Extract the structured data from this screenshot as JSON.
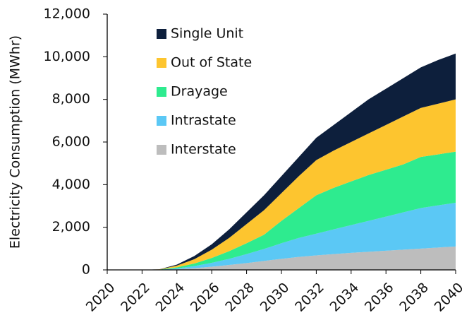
{
  "chart_data": {
    "type": "stacked_area",
    "y_label": "Electricity Consumption  (MWhr)",
    "x": [
      2020,
      2021,
      2022,
      2023,
      2024,
      2025,
      2026,
      2027,
      2028,
      2029,
      2030,
      2031,
      2032,
      2033,
      2034,
      2035,
      2036,
      2037,
      2038,
      2039,
      2040
    ],
    "xlim": [
      2020,
      2040
    ],
    "xticks": [
      2020,
      2022,
      2024,
      2026,
      2028,
      2030,
      2032,
      2034,
      2036,
      2038,
      2040
    ],
    "ylim": [
      0,
      12000
    ],
    "yticks": [
      0,
      {
        "value": 2000,
        "label": "2,000"
      },
      {
        "value": 4000,
        "label": "4,000"
      },
      {
        "value": 6000,
        "label": "6,000"
      },
      {
        "value": 8000,
        "label": "8,000"
      },
      {
        "value": 10000,
        "label": "10,000"
      },
      {
        "value": 12000,
        "label": "12,000"
      }
    ],
    "grid": false,
    "legend": "upper left",
    "series": [
      {
        "name": "Interstate",
        "color": "#bdbdbd",
        "values": [
          0,
          0,
          0,
          5,
          30,
          80,
          150,
          230,
          320,
          420,
          520,
          610,
          680,
          740,
          800,
          850,
          900,
          950,
          1000,
          1050,
          1100
        ]
      },
      {
        "name": "Intrastate",
        "color": "#5bc8f5",
        "values": [
          0,
          0,
          0,
          5,
          40,
          100,
          180,
          290,
          420,
          560,
          730,
          890,
          1020,
          1160,
          1300,
          1450,
          1600,
          1750,
          1900,
          1980,
          2050
        ]
      },
      {
        "name": "Drayage",
        "color": "#2eeb8f",
        "values": [
          0,
          0,
          0,
          5,
          50,
          120,
          230,
          360,
          510,
          670,
          1050,
          1400,
          1800,
          1950,
          2050,
          2150,
          2200,
          2250,
          2400,
          2390,
          2400
        ]
      },
      {
        "name": "Out of State",
        "color": "#fdc52f",
        "values": [
          0,
          0,
          0,
          10,
          80,
          200,
          390,
          620,
          900,
          1150,
          1300,
          1500,
          1650,
          1750,
          1850,
          1950,
          2100,
          2250,
          2300,
          2380,
          2450
        ]
      },
      {
        "name": "Single Unit",
        "color": "#0d1f3c",
        "values": [
          0,
          0,
          0,
          5,
          50,
          150,
          250,
          400,
          550,
          700,
          800,
          900,
          1050,
          1200,
          1400,
          1600,
          1700,
          1800,
          1900,
          2050,
          2150
        ]
      }
    ]
  }
}
